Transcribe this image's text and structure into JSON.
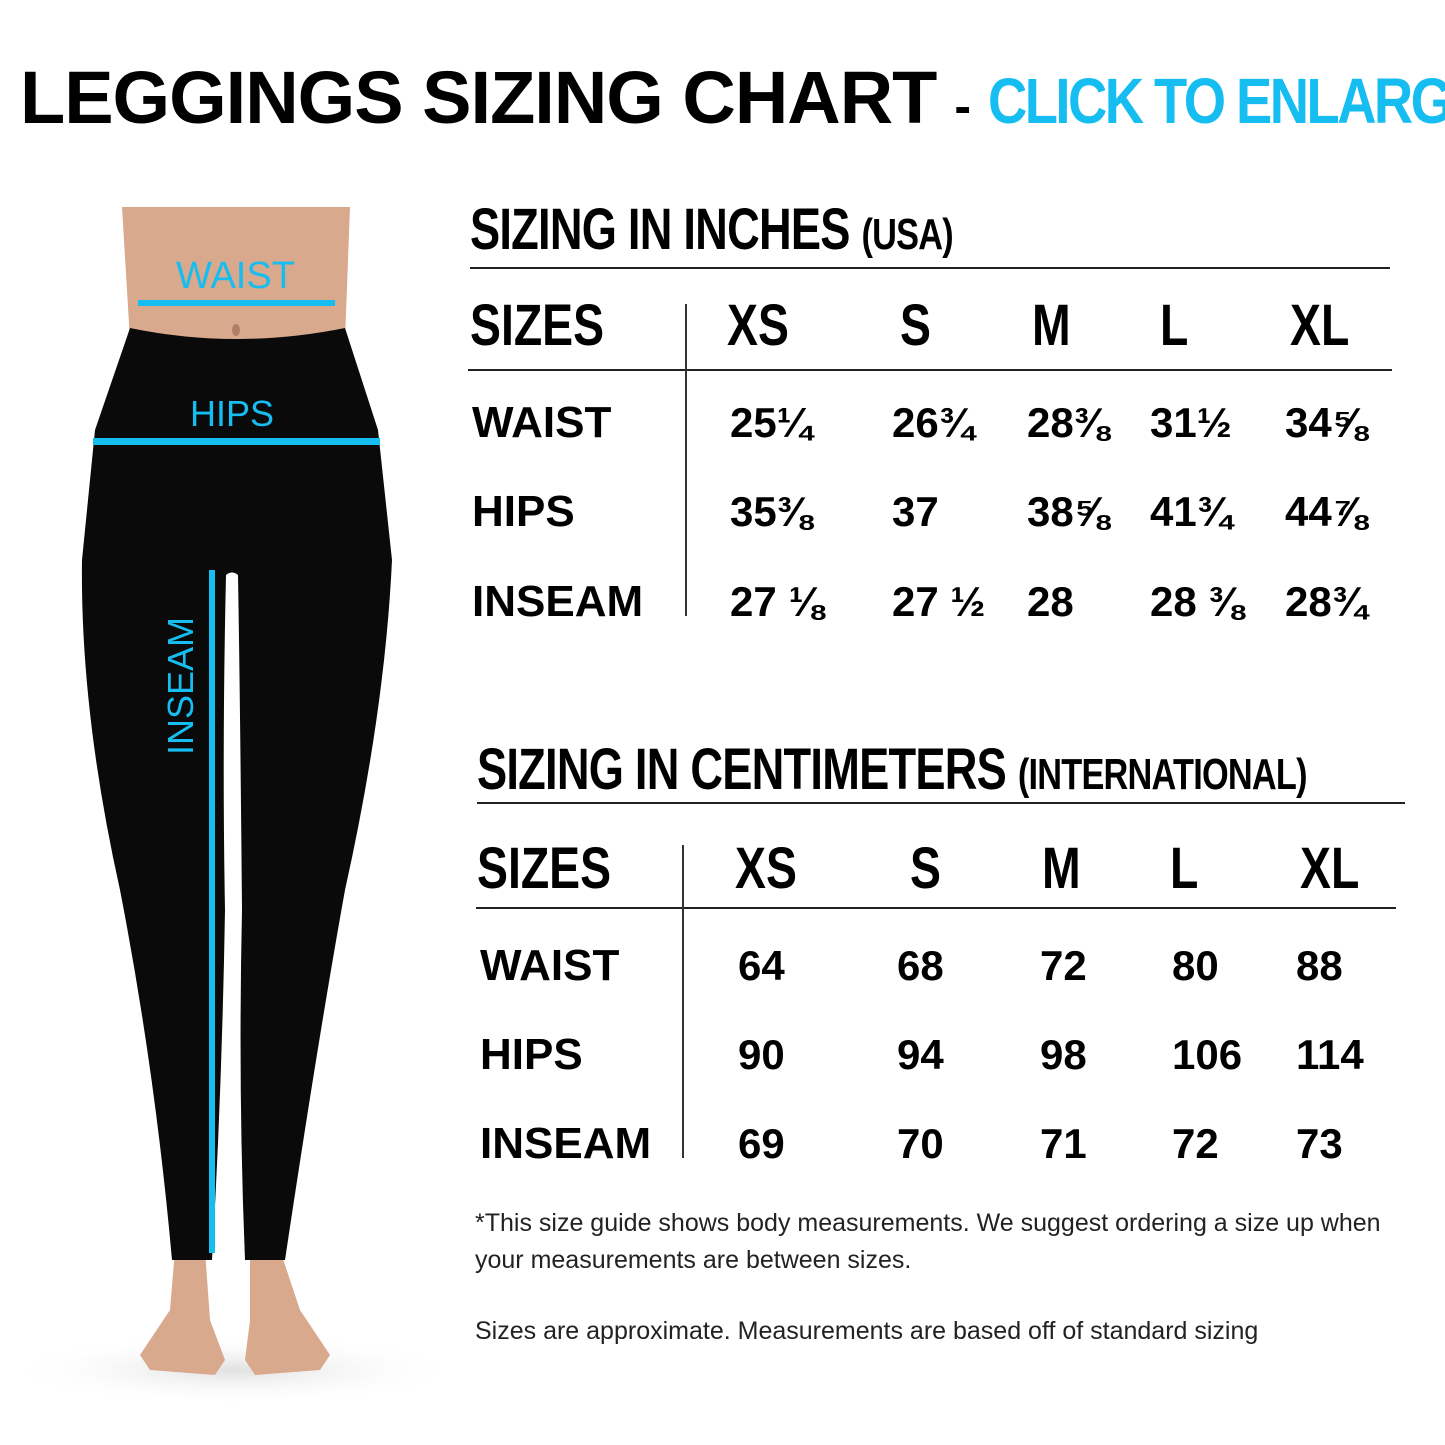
{
  "header": {
    "title": "LEGGINGS SIZING CHART",
    "separator": "-",
    "cta": "CLICK TO ENLARGE"
  },
  "colors": {
    "accent": "#15bdf0",
    "text": "#000000"
  },
  "figure": {
    "labels": {
      "waist": "WAIST",
      "hips": "HIPS",
      "inseam": "INSEAM"
    }
  },
  "inches": {
    "title": "SIZING IN INCHES",
    "subtitle": "(USA)",
    "headers": [
      "SIZES",
      "XS",
      "S",
      "M",
      "L",
      "XL"
    ],
    "rows": [
      {
        "label": "WAIST",
        "values": [
          "25¼",
          "26¾",
          "28⅜",
          "31½",
          "34⅝"
        ]
      },
      {
        "label": "HIPS",
        "values": [
          "35⅜",
          "37",
          "38⅝",
          "41¾",
          "44⅞"
        ]
      },
      {
        "label": "INSEAM",
        "values": [
          "27 ⅛",
          "27 ½",
          "28",
          "28 ⅜",
          "28¾"
        ]
      }
    ]
  },
  "centimeters": {
    "title": "SIZING IN CENTIMETERS",
    "subtitle": "(INTERNATIONAL)",
    "headers": [
      "SIZES",
      "XS",
      "S",
      "M",
      "L",
      "XL"
    ],
    "rows": [
      {
        "label": "WAIST",
        "values": [
          "64",
          "68",
          "72",
          "80",
          "88"
        ]
      },
      {
        "label": "HIPS",
        "values": [
          "90",
          "94",
          "98",
          "106",
          "114"
        ]
      },
      {
        "label": "INSEAM",
        "values": [
          "69",
          "70",
          "71",
          "72",
          "73"
        ]
      }
    ]
  },
  "notes": {
    "line1": "*This size guide shows body measurements. We suggest ordering a size up when your measurements are between sizes.",
    "line2": "Sizes are approximate. Measurements are based off of standard sizing"
  }
}
